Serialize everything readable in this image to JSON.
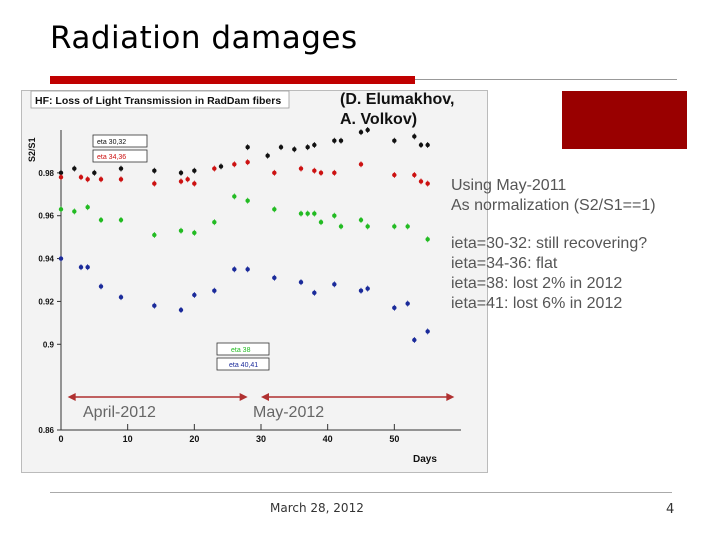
{
  "slide": {
    "title": "Radiation damages",
    "footer_date": "March 28, 2012",
    "page_number": "4"
  },
  "credit": {
    "line1": "(D. Elumakhov,",
    "line2": "A. Volkov)"
  },
  "notes": {
    "intro1": "Using May-2011",
    "intro2": "As normalization (S2/S1==1)",
    "items": [
      "ieta=30-32: still recovering?",
      "ieta=34-36:  flat",
      "ieta=38: lost 2% in 2012",
      "ieta=41: lost 6% in 2012"
    ]
  },
  "colors": {
    "accent_red": "#c00000",
    "corner_red": "#990000",
    "black_series": "#111111",
    "red_series": "#cc1111",
    "green_series": "#22bb22",
    "blue_series": "#1a2a9a",
    "period_arrow": "#b03030"
  },
  "chart_data": {
    "type": "scatter",
    "title": "HF: Loss of Light Transmission in RadDam fibers",
    "xlabel": "Days",
    "ylabel": "S2/S1",
    "xlim": [
      0,
      60
    ],
    "ylim": [
      0.86,
      1.0
    ],
    "x_ticks": [
      0,
      10,
      20,
      30,
      40,
      50
    ],
    "y_ticks": [
      0.86,
      0.9,
      0.92,
      0.94,
      0.96,
      0.98
    ],
    "y_tick_labels": [
      "0.86",
      "0.9",
      "0.92",
      "0.94",
      "0.96",
      "0.98"
    ],
    "legend": [
      "eta 30,32",
      "eta 34,36",
      "eta 38",
      "eta 40,41"
    ],
    "periods": [
      {
        "label": "April-2012",
        "x_start": 1,
        "x_end": 28
      },
      {
        "label": "May-2012",
        "x_start": 30,
        "x_end": 59
      }
    ],
    "series": [
      {
        "name": "eta 30,32",
        "color": "#111111",
        "x": [
          0,
          2,
          5,
          9,
          14,
          18,
          20,
          24,
          28,
          31,
          33,
          35,
          37,
          38,
          41,
          42,
          45,
          46,
          50,
          53,
          54,
          55
        ],
        "y": [
          0.98,
          0.982,
          0.98,
          0.982,
          0.981,
          0.98,
          0.981,
          0.983,
          0.992,
          0.988,
          0.992,
          0.991,
          0.992,
          0.993,
          0.995,
          0.995,
          0.999,
          1.0,
          0.995,
          0.997,
          0.993,
          0.993
        ]
      },
      {
        "name": "eta 34,36",
        "color": "#cc1111",
        "x": [
          0,
          3,
          4,
          6,
          9,
          14,
          18,
          19,
          20,
          23,
          26,
          28,
          32,
          36,
          38,
          39,
          41,
          45,
          50,
          53,
          54,
          55
        ],
        "y": [
          0.978,
          0.978,
          0.977,
          0.977,
          0.977,
          0.975,
          0.976,
          0.977,
          0.975,
          0.982,
          0.984,
          0.985,
          0.98,
          0.982,
          0.981,
          0.98,
          0.98,
          0.984,
          0.979,
          0.979,
          0.976,
          0.975
        ]
      },
      {
        "name": "eta 38",
        "color": "#22bb22",
        "x": [
          0,
          2,
          4,
          6,
          9,
          14,
          18,
          20,
          23,
          26,
          28,
          32,
          36,
          37,
          38,
          39,
          41,
          42,
          45,
          46,
          50,
          52,
          55
        ],
        "y": [
          0.963,
          0.962,
          0.964,
          0.958,
          0.958,
          0.951,
          0.953,
          0.952,
          0.957,
          0.969,
          0.967,
          0.963,
          0.961,
          0.961,
          0.961,
          0.957,
          0.96,
          0.955,
          0.958,
          0.955,
          0.955,
          0.955,
          0.949
        ]
      },
      {
        "name": "eta 40,41",
        "color": "#1a2a9a",
        "x": [
          0,
          3,
          4,
          6,
          9,
          14,
          18,
          20,
          23,
          26,
          28,
          32,
          36,
          38,
          41,
          45,
          46,
          50,
          52,
          53,
          55
        ],
        "y": [
          0.94,
          0.936,
          0.936,
          0.927,
          0.922,
          0.918,
          0.916,
          0.923,
          0.925,
          0.935,
          0.935,
          0.931,
          0.929,
          0.924,
          0.928,
          0.925,
          0.926,
          0.917,
          0.919,
          0.902,
          0.906
        ]
      }
    ]
  }
}
